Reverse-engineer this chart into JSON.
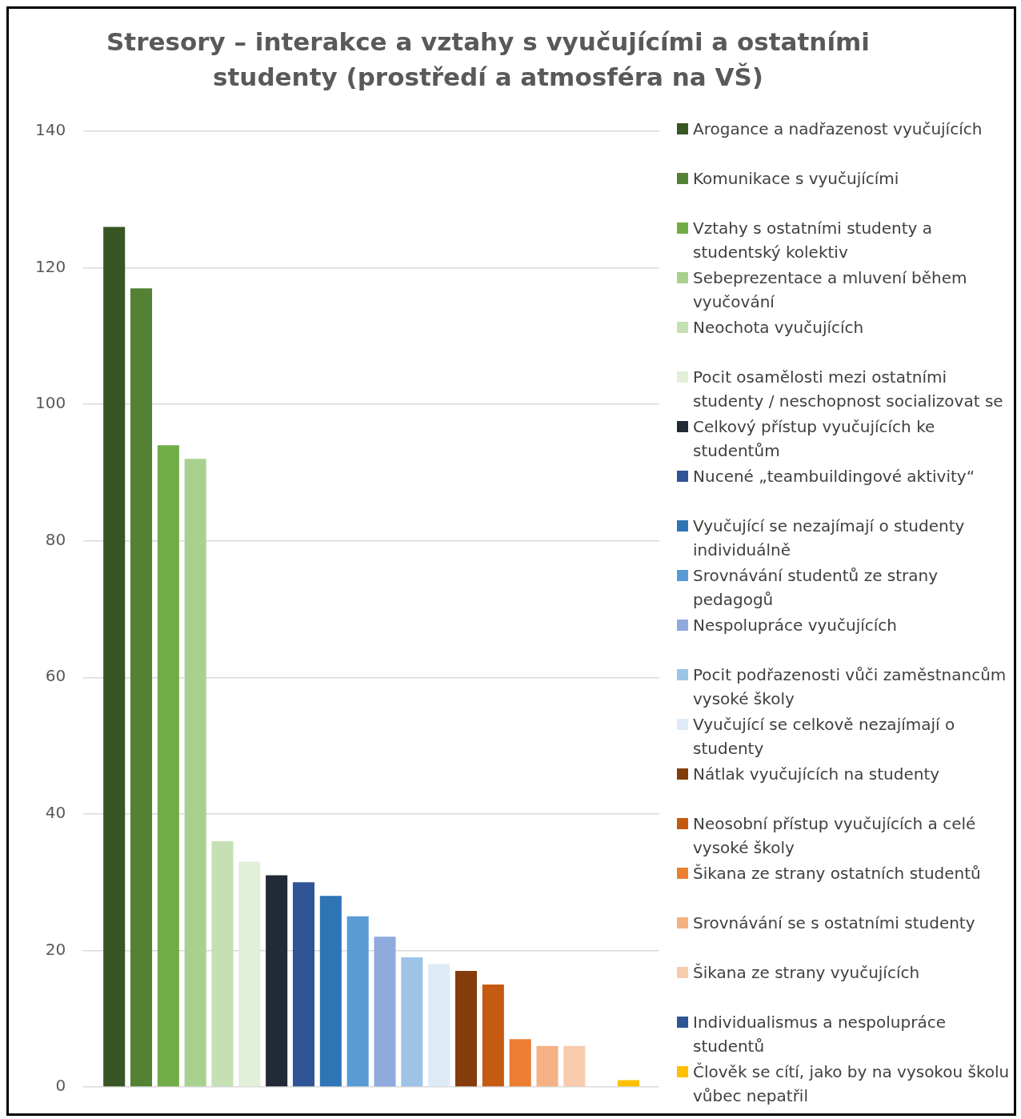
{
  "chart_data": {
    "type": "bar",
    "title": "Stresory – interakce a vztahy s vyučujícími a ostatními studenty (prostředí a atmosféra na VŠ)",
    "categories": [
      null
    ],
    "series": [
      {
        "name": "Arogance a nadřazenost vyučujících",
        "color": "#375623",
        "values": [
          126
        ]
      },
      {
        "name": "Komunikace s vyučujícími",
        "color": "#548235",
        "values": [
          117
        ]
      },
      {
        "name": "Vztahy s ostatními studenty a studentský kolektiv",
        "color": "#70ad47",
        "values": [
          94
        ]
      },
      {
        "name": "Sebeprezentace a mluvení během vyučování",
        "color": "#a9d18e",
        "values": [
          92
        ]
      },
      {
        "name": "Neochota vyučujících",
        "color": "#c5e0b4",
        "values": [
          36
        ]
      },
      {
        "name": "Pocit osamělosti mezi ostatními studenty / neschopnost socializovat se",
        "color": "#e2f0d9",
        "values": [
          33
        ]
      },
      {
        "name": "Celkový přístup vyučujících ke studentům",
        "color": "#222a35",
        "values": [
          31
        ]
      },
      {
        "name": "Nucené „teambuildingové aktivity“",
        "color": "#2f5597",
        "values": [
          30
        ]
      },
      {
        "name": "Vyučující se nezajímají o studenty individuálně",
        "color": "#2e75b6",
        "values": [
          28
        ]
      },
      {
        "name": "Srovnávání studentů ze strany pedagogů",
        "color": "#5b9bd5",
        "values": [
          25
        ]
      },
      {
        "name": "Nespolupráce vyučujících",
        "color": "#8faadc",
        "values": [
          22
        ]
      },
      {
        "name": "Pocit podřazenosti vůči zaměstnancům vysoké školy",
        "color": "#9dc3e6",
        "values": [
          19
        ]
      },
      {
        "name": "Vyučující se celkově nezajímají o studenty",
        "color": "#deebf7",
        "values": [
          18
        ]
      },
      {
        "name": "Nátlak vyučujících na studenty",
        "color": "#843c0c",
        "values": [
          17
        ]
      },
      {
        "name": "Neosobní přístup vyučujících a celé vysoké školy",
        "color": "#c55a11",
        "values": [
          15
        ]
      },
      {
        "name": "Šikana ze strany ostatních studentů",
        "color": "#ed7d31",
        "values": [
          7
        ]
      },
      {
        "name": "Srovnávání se s ostatními studenty",
        "color": "#f4b183",
        "values": [
          6
        ]
      },
      {
        "name": "Šikana ze strany vyučujících",
        "color": "#f8cbad",
        "values": [
          6
        ]
      },
      {
        "name": "Individualismus a nespolupráce studentů",
        "color": "#2f5597",
        "values": [
          0
        ]
      },
      {
        "name": "Člověk se cítí, jako by na vysokou školu vůbec nepatřil",
        "color": "#ffc000",
        "values": [
          1
        ]
      }
    ],
    "ylim": [
      0,
      140
    ],
    "yticks": [
      0,
      20,
      40,
      60,
      80,
      100,
      120,
      140
    ],
    "grid": "y",
    "legend": "right"
  }
}
